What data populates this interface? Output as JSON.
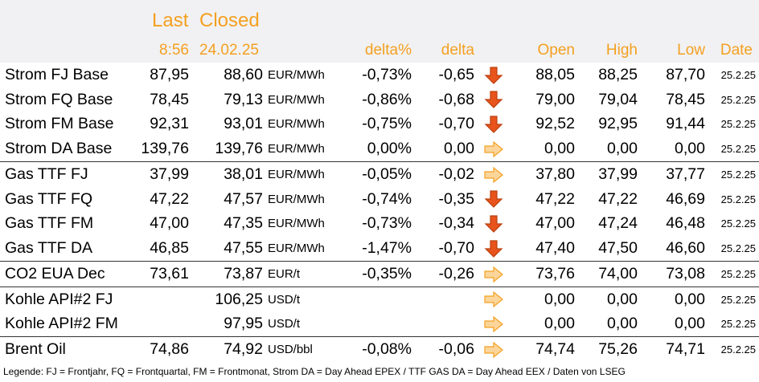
{
  "header": {
    "last_label": "Last",
    "closed_label": "Closed",
    "last_time": "8:56",
    "closed_date": "24.02.25",
    "delta_pct_label": "delta%",
    "delta_label": "delta",
    "open_label": "Open",
    "high_label": "High",
    "low_label": "Low",
    "date_label": "Date"
  },
  "rows": [
    {
      "name": "Strom FJ Base",
      "last": "87,95",
      "closed": "88,60",
      "unit": "EUR/MWh",
      "delta_pct": "-0,73%",
      "delta": "-0,65",
      "trend": "down",
      "open": "88,05",
      "high": "88,25",
      "low": "87,70",
      "date": "25.2.25"
    },
    {
      "name": "Strom FQ Base",
      "last": "78,45",
      "closed": "79,13",
      "unit": "EUR/MWh",
      "delta_pct": "-0,86%",
      "delta": "-0,68",
      "trend": "down",
      "open": "79,00",
      "high": "79,04",
      "low": "78,45",
      "date": "25.2.25"
    },
    {
      "name": "Strom FM Base",
      "last": "92,31",
      "closed": "93,01",
      "unit": "EUR/MWh",
      "delta_pct": "-0,75%",
      "delta": "-0,70",
      "trend": "down",
      "open": "92,52",
      "high": "92,95",
      "low": "91,44",
      "date": "25.2.25"
    },
    {
      "name": "Strom DA Base",
      "last": "139,76",
      "closed": "139,76",
      "unit": "EUR/MWh",
      "delta_pct": "0,00%",
      "delta": "0,00",
      "trend": "flat",
      "open": "0,00",
      "high": "0,00",
      "low": "0,00",
      "date": "25.2.25"
    },
    {
      "name": "Gas TTF FJ",
      "last": "37,99",
      "closed": "38,01",
      "unit": "EUR/MWh",
      "delta_pct": "-0,05%",
      "delta": "-0,02",
      "trend": "flat",
      "open": "37,80",
      "high": "37,99",
      "low": "37,77",
      "date": "25.2.25"
    },
    {
      "name": "Gas TTF FQ",
      "last": "47,22",
      "closed": "47,57",
      "unit": "EUR/MWh",
      "delta_pct": "-0,74%",
      "delta": "-0,35",
      "trend": "down",
      "open": "47,22",
      "high": "47,22",
      "low": "46,69",
      "date": "25.2.25"
    },
    {
      "name": "Gas TTF FM",
      "last": "47,00",
      "closed": "47,35",
      "unit": "EUR/MWh",
      "delta_pct": "-0,73%",
      "delta": "-0,34",
      "trend": "down",
      "open": "47,00",
      "high": "47,24",
      "low": "46,48",
      "date": "25.2.25"
    },
    {
      "name": "Gas TTF DA",
      "last": "46,85",
      "closed": "47,55",
      "unit": "EUR/MWh",
      "delta_pct": "-1,47%",
      "delta": "-0,70",
      "trend": "down",
      "open": "47,40",
      "high": "47,50",
      "low": "46,60",
      "date": "25.2.25"
    },
    {
      "name": "CO2 EUA Dec",
      "last": "73,61",
      "closed": "73,87",
      "unit": "EUR/t",
      "delta_pct": "-0,35%",
      "delta": "-0,26",
      "trend": "flat",
      "open": "73,76",
      "high": "74,00",
      "low": "73,08",
      "date": "25.2.25"
    },
    {
      "name": "Kohle API#2 FJ",
      "last": "",
      "closed": "106,25",
      "unit": "USD/t",
      "delta_pct": "",
      "delta": "",
      "trend": "flat",
      "open": "0,00",
      "high": "0,00",
      "low": "0,00",
      "date": "25.2.25"
    },
    {
      "name": "Kohle API#2 FM",
      "last": "",
      "closed": "97,95",
      "unit": "USD/t",
      "delta_pct": "",
      "delta": "",
      "trend": "flat",
      "open": "0,00",
      "high": "0,00",
      "low": "0,00",
      "date": "25.2.25"
    },
    {
      "name": "Brent Oil",
      "last": "74,86",
      "closed": "74,92",
      "unit": "USD/bbl",
      "delta_pct": "-0,08%",
      "delta": "-0,06",
      "trend": "flat",
      "open": "74,74",
      "high": "75,26",
      "low": "74,71",
      "date": "25.2.25"
    }
  ],
  "legend": "Legende: FJ = Frontjahr, FQ = Frontquartal, FM = Frontmonat, Strom DA = Day Ahead EPEX / TTF GAS DA = Day Ahead EEX / Daten von LSEG",
  "colors": {
    "header_text": "#f4a020",
    "header_bg": "#f1f1f3",
    "arrow_down": "#e8541c",
    "arrow_flat": "#f4a020"
  }
}
